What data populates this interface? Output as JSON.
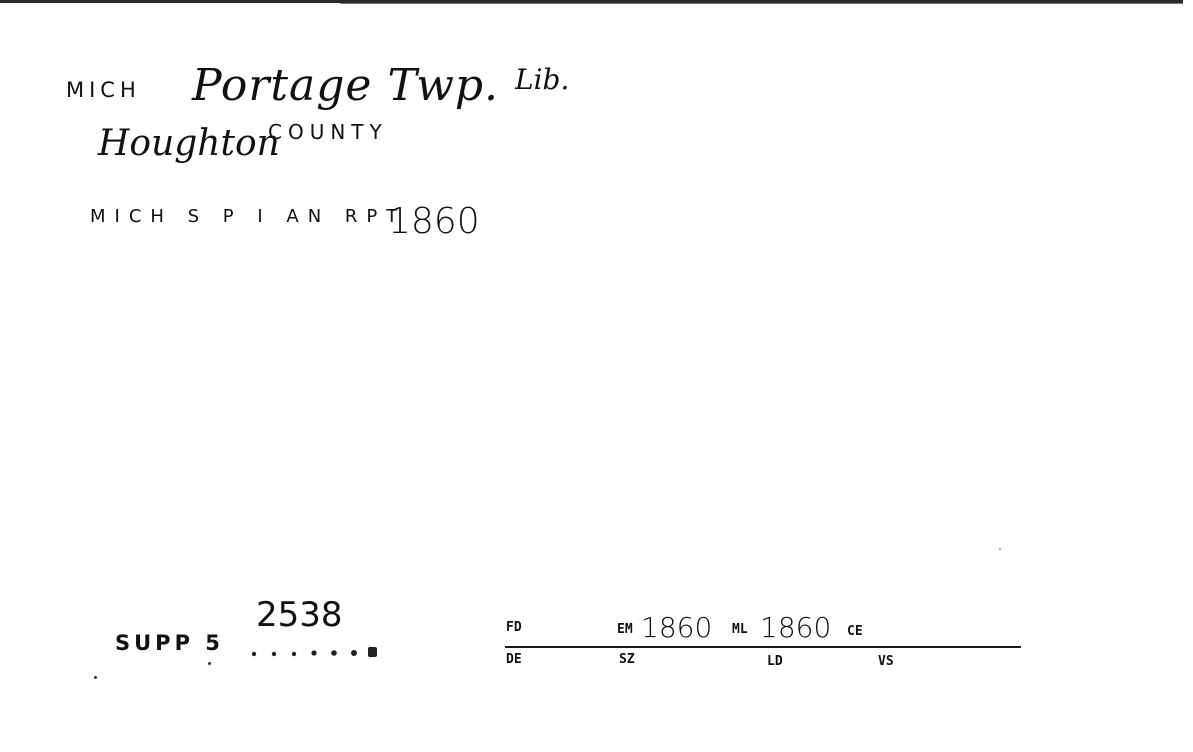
{
  "card": {
    "header": {
      "state_abbr": "MICH",
      "library_name": "Portage Twp.",
      "library_suffix": "Lib.",
      "county_handwritten": "Houghton",
      "county_typed": "COUNTY"
    },
    "source": {
      "text": "MICH S P I AN RPT",
      "year": "1860"
    },
    "supplement": {
      "label": "SUPP 5",
      "number": "2538"
    },
    "fields": {
      "fd": {
        "label": "FD",
        "value": ""
      },
      "em": {
        "label": "EM",
        "value": "1860"
      },
      "ml": {
        "label": "ML",
        "value": "1860"
      },
      "ce": {
        "label": "CE",
        "value": ""
      },
      "de": {
        "label": "DE",
        "value": ""
      },
      "sz": {
        "label": "SZ",
        "value": ""
      },
      "ld": {
        "label": "LD",
        "value": ""
      },
      "vs": {
        "label": "VS",
        "value": ""
      }
    }
  },
  "colors": {
    "ink": "#111111",
    "paper": "#ffffff",
    "rule": "#1a1a1a"
  }
}
